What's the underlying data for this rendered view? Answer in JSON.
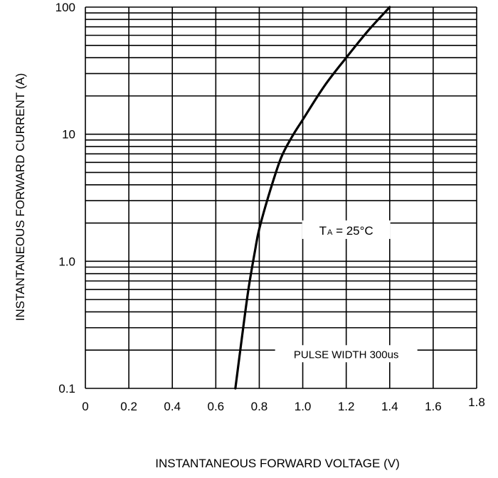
{
  "chart_data": {
    "type": "line",
    "title": "",
    "xlabel": "INSTANTANEOUS FORWARD VOLTAGE  (V)",
    "ylabel": "INSTANTANEOUS FORWARD CURRENT (A)",
    "x_scale": "linear",
    "y_scale": "log",
    "xlim": [
      0,
      1.8
    ],
    "ylim": [
      0.1,
      100
    ],
    "x_ticks": [
      "0",
      "0.2",
      "0.4",
      "0.6",
      "0.8",
      "1.0",
      "1.2",
      "1.4",
      "1.6",
      "1.8"
    ],
    "y_ticks": [
      "0.1",
      "1.0",
      "10",
      "100"
    ],
    "grid": true,
    "series": [
      {
        "x": [
          0.69,
          0.72,
          0.75,
          0.78,
          0.8,
          0.85,
          0.9,
          0.95,
          1.0,
          1.1,
          1.2,
          1.3,
          1.4
        ],
        "y": [
          0.1,
          0.25,
          0.6,
          1.2,
          1.8,
          3.6,
          6.5,
          9.5,
          13,
          24,
          40,
          65,
          100
        ]
      }
    ],
    "annotations": [
      {
        "main": "T",
        "sub": "A",
        "rest": " = 25°C",
        "x": 1.2,
        "y": 1.75
      },
      {
        "text": "PULSE WIDTH 300us",
        "x": 1.2,
        "y": 0.185
      }
    ]
  }
}
